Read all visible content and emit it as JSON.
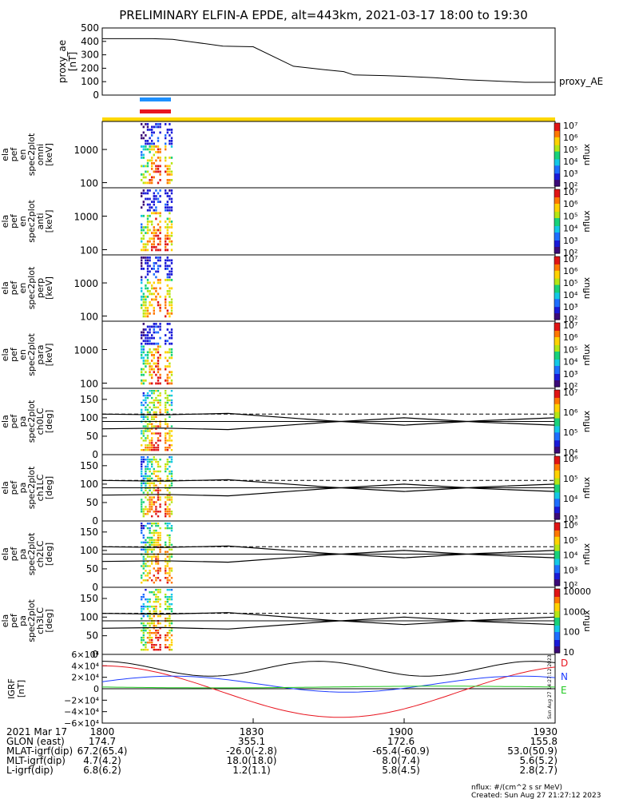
{
  "title": "PRELIMINARY ELFIN-A EPDE, alt=443km, 2021-03-17 18:00 to 19:30",
  "time_range": [
    "18:00",
    "19:30"
  ],
  "time_labels": [
    "1800",
    "1830",
    "1900",
    "1930"
  ],
  "indicator_colors": {
    "blue": "#1e90ff",
    "red": "#e8141e",
    "yellow": "#ffd700"
  },
  "chart_data": [
    {
      "type": "line",
      "panel": "proxy_ae",
      "ylabel_lines": [
        "proxy_ae",
        "[nT]"
      ],
      "right_label": "proxy_AE",
      "ylim": [
        0,
        500
      ],
      "yticks": [
        "0",
        "100",
        "200",
        "300",
        "400",
        "500"
      ],
      "series": [
        {
          "name": "proxy_AE",
          "x": [
            0,
            5,
            10,
            14,
            18,
            24,
            30,
            38,
            44,
            48,
            50,
            56,
            60,
            66,
            72,
            78,
            84,
            90
          ],
          "values": [
            420,
            420,
            420,
            415,
            395,
            365,
            360,
            215,
            190,
            175,
            150,
            145,
            140,
            130,
            115,
            105,
            95,
            95
          ]
        }
      ]
    },
    {
      "type": "heatmap",
      "panel": "omni",
      "ylabel_lines": [
        "ela",
        "pef",
        "en",
        "spec2plot",
        "omni",
        "[keV]"
      ],
      "yticks": [
        "100",
        "1000"
      ],
      "colorbar": {
        "label": "nflux",
        "ticks": [
          "10^2",
          "10^3",
          "10^4",
          "10^5",
          "10^6",
          "10^7"
        ]
      }
    },
    {
      "type": "heatmap",
      "panel": "anti",
      "ylabel_lines": [
        "ela",
        "pef",
        "en",
        "spec2plot",
        "anti",
        "[keV]"
      ],
      "yticks": [
        "100",
        "1000"
      ],
      "colorbar": {
        "label": "nflux",
        "ticks": [
          "10^2",
          "10^3",
          "10^4",
          "10^5",
          "10^6",
          "10^7"
        ]
      }
    },
    {
      "type": "heatmap",
      "panel": "perp",
      "ylabel_lines": [
        "ela",
        "pef",
        "en",
        "spec2plot",
        "perp",
        "[keV]"
      ],
      "yticks": [
        "100",
        "1000"
      ],
      "colorbar": {
        "label": "nflux",
        "ticks": [
          "10^2",
          "10^3",
          "10^4",
          "10^5",
          "10^6",
          "10^7"
        ]
      }
    },
    {
      "type": "heatmap",
      "panel": "para",
      "ylabel_lines": [
        "ela",
        "pef",
        "en",
        "spec2plot",
        "para",
        "[keV]"
      ],
      "yticks": [
        "100",
        "1000"
      ],
      "colorbar": {
        "label": "nflux",
        "ticks": [
          "10^2",
          "10^3",
          "10^4",
          "10^5",
          "10^6",
          "10^7"
        ]
      }
    },
    {
      "type": "heatmap",
      "panel": "ch0LC",
      "ylabel_lines": [
        "ela",
        "pef",
        "pa",
        "spec2plot",
        "ch0LC",
        "[deg]"
      ],
      "ylim": [
        0,
        180
      ],
      "yticks": [
        "0",
        "50",
        "100",
        "150"
      ],
      "colorbar": {
        "label": "nflux",
        "ticks": [
          "10^4",
          "10^5",
          "10^6",
          "10^7"
        ]
      }
    },
    {
      "type": "heatmap",
      "panel": "ch1LC",
      "ylabel_lines": [
        "ela",
        "pef",
        "pa",
        "spec2plot",
        "ch1LC",
        "[deg]"
      ],
      "ylim": [
        0,
        180
      ],
      "yticks": [
        "0",
        "50",
        "100",
        "150"
      ],
      "colorbar": {
        "label": "nflux",
        "ticks": [
          "10^3",
          "10^4",
          "10^5",
          "10^6"
        ]
      }
    },
    {
      "type": "heatmap",
      "panel": "ch2LC",
      "ylabel_lines": [
        "ela",
        "pef",
        "pa",
        "spec2plot",
        "ch2LC",
        "[deg]"
      ],
      "ylim": [
        0,
        180
      ],
      "yticks": [
        "0",
        "50",
        "100",
        "150"
      ],
      "colorbar": {
        "label": "nflux",
        "ticks": [
          "10^2",
          "10^3",
          "10^4",
          "10^5",
          "10^6"
        ]
      }
    },
    {
      "type": "heatmap",
      "panel": "ch3LC",
      "ylabel_lines": [
        "ela",
        "pef",
        "pa",
        "spec2plot",
        "ch3LC",
        "[deg]"
      ],
      "ylim": [
        0,
        180
      ],
      "yticks": [
        "0",
        "50",
        "100",
        "150"
      ],
      "colorbar": {
        "label": "nflux",
        "ticks": [
          "10",
          "100",
          "1000",
          "10000"
        ]
      }
    },
    {
      "type": "line",
      "panel": "IGRF",
      "ylabel_lines": [
        "IGRF",
        "[nT]"
      ],
      "ylim": [
        -60000,
        60000
      ],
      "yticks": [
        "6×10⁴",
        "4×10⁴",
        "2×10⁴",
        "0",
        "−2×10⁴",
        "−4×10⁴",
        "−6×10⁴"
      ],
      "series": [
        {
          "name": "D",
          "color": "#e8141e"
        },
        {
          "name": "N",
          "color": "#1e3cff"
        },
        {
          "name": "E",
          "color": "#1ec81e"
        }
      ]
    }
  ],
  "ephemeris": {
    "rows": [
      {
        "label": "2021 Mar 17",
        "values": [
          "1800",
          "1830",
          "1900",
          "1930"
        ]
      },
      {
        "label": "GLON (east)",
        "values": [
          "174.7",
          "355.1",
          "172.6",
          "155.8"
        ]
      },
      {
        "label": "MLAT-igrf(dip)",
        "values": [
          "67.2(65.4)",
          "-26.0(-2.8)",
          "-65.4(-60.9)",
          "53.0(50.9)"
        ]
      },
      {
        "label": "MLT-igrf(dip)",
        "values": [
          "4.7(4.2)",
          "18.0(18.0)",
          "8.0(7.4)",
          "5.6(5.2)"
        ]
      },
      {
        "label": "L-igrf(dip)",
        "values": [
          "6.8(6.2)",
          "1.2(1.1)",
          "5.8(4.5)",
          "2.8(2.7)"
        ]
      }
    ]
  },
  "footer": {
    "units": "nflux: #/(cm^2 s sr MeV)",
    "created": "Created: Sun Aug 27 21:27:12 2023",
    "side_stamp": "Sun Aug 27 14:27:12 2023"
  }
}
